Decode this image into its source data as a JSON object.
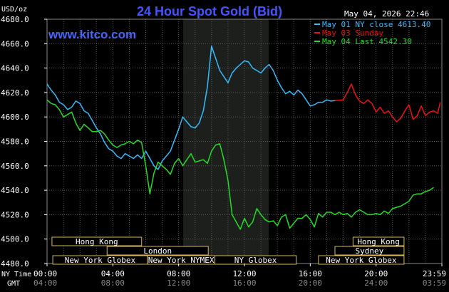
{
  "chart_data": {
    "type": "line",
    "title": "24 Hour Spot Gold (Bid)",
    "ylabel": "USD/oz",
    "watermark": "www.kitco.com",
    "timestamp": "May 04, 2026 22:46",
    "ylim": [
      4480,
      4680
    ],
    "xlim": [
      0,
      24
    ],
    "y_ticks": [
      "4680.0",
      "4660.0",
      "4640.0",
      "4620.0",
      "4600.0",
      "4580.0",
      "4560.0",
      "4540.0",
      "4520.0",
      "4500.0",
      "4480.0"
    ],
    "x_ticks_ny": [
      "00:00",
      "04:00",
      "08:00",
      "12:00",
      "16:00",
      "20:00",
      "23:59"
    ],
    "x_ticks_gmt": [
      "04:00",
      "08:00",
      "12:00",
      "16:00",
      "20:00",
      "24:00",
      "03:59"
    ],
    "ny_time_label": "NY Time",
    "gmt_label": "GMT",
    "legend_position": "top-right",
    "grid": true,
    "colors": {
      "may01": "#33bbff",
      "may03": "#ee1111",
      "may04": "#22dd22",
      "highlight": "#1c1f1c",
      "grid": "#5a5a5a"
    },
    "sessions": [
      {
        "label": "Hong Kong",
        "row": 0,
        "start": 0.6,
        "end": 11.5
      },
      {
        "label": "London",
        "row": 1,
        "start": 7.3,
        "end": 19.6
      },
      {
        "label": "New York Globex",
        "row": 2,
        "start": 0.7,
        "end": 12.2
      },
      {
        "label": "New York NYMEX",
        "row": 2,
        "start": 12.2,
        "end": 20.4
      },
      {
        "label": "NY Globex",
        "row": 2,
        "start": 20.4,
        "end": 30.3
      },
      {
        "label": "Hong Kong",
        "row": 0,
        "start": 37.2,
        "end": 43.4
      },
      {
        "label": "Sydney",
        "row": 1,
        "start": 35.0,
        "end": 43.4
      },
      {
        "label": "New York Globex",
        "row": 2,
        "start": 33.0,
        "end": 43.4
      }
    ],
    "series": [
      {
        "name": "May 01 NY close 4613.40",
        "color": "#33bbff",
        "x": [
          0,
          0.25,
          0.5,
          0.75,
          1,
          1.25,
          1.5,
          1.75,
          2,
          2.25,
          2.5,
          2.75,
          3,
          3.25,
          3.5,
          3.75,
          4,
          4.25,
          4.5,
          4.75,
          5,
          5.25,
          5.5,
          5.75,
          6,
          6.25,
          6.5,
          6.75,
          7,
          7.25,
          7.5,
          7.75,
          8,
          8.25,
          8.5,
          8.75,
          9,
          9.25,
          9.5,
          9.75,
          10,
          10.25,
          10.5,
          10.75,
          11,
          11.25,
          11.5,
          11.75,
          12,
          12.25,
          12.5,
          12.75,
          13,
          13.25,
          13.5,
          13.75,
          14,
          14.25,
          14.5,
          14.75,
          15,
          15.25,
          15.5,
          15.75,
          16,
          16.25,
          16.5,
          16.75,
          17,
          17.25,
          17.5
        ],
        "y": [
          4627,
          4622,
          4618,
          4612,
          4610,
          4606,
          4608,
          4613,
          4611,
          4605,
          4603,
          4597,
          4591,
          4586,
          4579,
          4574,
          4572,
          4568,
          4566,
          4570,
          4568,
          4566,
          4569,
          4566,
          4572,
          4566,
          4560,
          4557,
          4564,
          4568,
          4572,
          4581,
          4590,
          4600,
          4596,
          4592,
          4591,
          4595,
          4605,
          4625,
          4658,
          4648,
          4638,
          4633,
          4628,
          4636,
          4640,
          4643,
          4646,
          4645,
          4640,
          4638,
          4636,
          4640,
          4643,
          4638,
          4630,
          4624,
          4619,
          4621,
          4618,
          4622,
          4619,
          4614,
          4609,
          4610,
          4612,
          4612,
          4614,
          4613,
          4613.4
        ]
      },
      {
        "name": "May 03 Sunday",
        "color": "#ee1111",
        "x": [
          17.5,
          18,
          18.25,
          18.5,
          18.75,
          19,
          19.25,
          19.5,
          19.75,
          20,
          20.25,
          20.5,
          20.75,
          21,
          21.25,
          21.5,
          21.75,
          22,
          22.25,
          22.5,
          22.75,
          23,
          23.25,
          23.5,
          23.75,
          23.9
        ],
        "y": [
          4613.4,
          4614,
          4620,
          4627,
          4618,
          4613,
          4611,
          4614,
          4611,
          4604,
          4608,
          4603,
          4605,
          4600,
          4596,
          4599,
          4605,
          4610,
          4598,
          4601,
          4609,
          4601,
          4604,
          4605,
          4603,
          4612
        ]
      },
      {
        "name": "May 04 Last 4542.30",
        "color": "#22dd22",
        "x": [
          0,
          0.25,
          0.5,
          0.75,
          1,
          1.25,
          1.5,
          1.75,
          2,
          2.25,
          2.5,
          2.75,
          3,
          3.25,
          3.5,
          3.75,
          4,
          4.25,
          4.5,
          4.75,
          5,
          5.25,
          5.5,
          5.75,
          6,
          6.25,
          6.5,
          6.75,
          7,
          7.25,
          7.5,
          7.75,
          8,
          8.25,
          8.5,
          8.75,
          9,
          9.25,
          9.5,
          9.75,
          10,
          10.25,
          10.5,
          10.75,
          11,
          11.25,
          11.5,
          11.75,
          12,
          12.25,
          12.5,
          12.75,
          13,
          13.25,
          13.5,
          13.75,
          14,
          14.25,
          14.5,
          14.75,
          15,
          15.25,
          15.5,
          15.75,
          16,
          16.25,
          16.5,
          16.75,
          17,
          17.25,
          17.5,
          17.75,
          18,
          18.25,
          18.5,
          18.75,
          19,
          19.25,
          19.5,
          19.75,
          20,
          20.25,
          20.5,
          20.75,
          21,
          21.25,
          21.5,
          21.75,
          22,
          22.25,
          22.5,
          22.75,
          23,
          23.25,
          23.5
        ],
        "y": [
          4614,
          4611,
          4610,
          4606,
          4600,
          4602,
          4604,
          4595,
          4589,
          4594,
          4591,
          4588,
          4588,
          4589,
          4586,
          4581,
          4577,
          4575,
          4577,
          4578,
          4580,
          4578,
          4581,
          4579,
          4560,
          4537,
          4554,
          4563,
          4560,
          4557,
          4553,
          4562,
          4566,
          4560,
          4565,
          4570,
          4563,
          4564,
          4565,
          4562,
          4572,
          4577,
          4578,
          4565,
          4548,
          4520,
          4514,
          4508,
          4517,
          4510,
          4514,
          4525,
          4520,
          4516,
          4514,
          4515,
          4511,
          4518,
          4520,
          4509,
          4513,
          4517,
          4517,
          4520,
          4516,
          4510,
          4521,
          4518,
          4522,
          4522,
          4520,
          4522,
          4520,
          4521,
          4518,
          4522,
          4524,
          4522,
          4520,
          4520,
          4521,
          4520,
          4523,
          4521,
          4525,
          4526,
          4527,
          4529,
          4531,
          4536,
          4537,
          4537,
          4539,
          4540,
          4542.3
        ]
      }
    ]
  }
}
